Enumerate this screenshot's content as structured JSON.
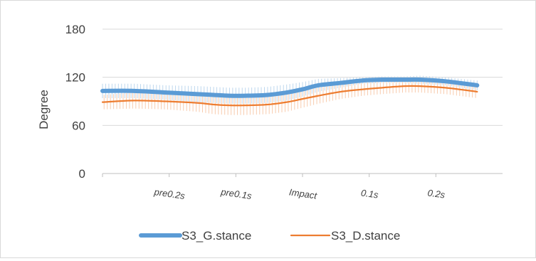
{
  "chart_data": {
    "type": "line",
    "title": "",
    "xlabel": "",
    "ylabel": "Degree",
    "ylim": [
      0,
      180
    ],
    "yticks": [
      0,
      60,
      120,
      180
    ],
    "x_tick_labels": [
      "pre0.2s",
      "pre0.1s",
      "Impact",
      "0.1s",
      "0.2s"
    ],
    "x_tick_positions": [
      21,
      42,
      63,
      84,
      105
    ],
    "x_range": [
      0,
      126
    ],
    "grid": true,
    "legend_position": "bottom",
    "series": [
      {
        "name": "S3_G.stance",
        "color": "#5b9bd5",
        "error_color": "#bdd7ee",
        "x": [
          0,
          10,
          20,
          30,
          35,
          40,
          45,
          52,
          58,
          63,
          68,
          75,
          82,
          88,
          95,
          100,
          108,
          118
        ],
        "values": [
          103,
          103,
          101,
          99,
          98,
          97,
          97,
          98,
          101,
          105,
          110,
          113,
          116,
          117,
          117,
          117,
          115,
          110
        ],
        "error": [
          9,
          9,
          9,
          10,
          10,
          10,
          10,
          10,
          10,
          9,
          8,
          6,
          4,
          4,
          4,
          5,
          5,
          6
        ]
      },
      {
        "name": "S3_D.stance",
        "color": "#ed7d31",
        "error_color": "#f8cbad",
        "x": [
          0,
          10,
          20,
          30,
          35,
          40,
          45,
          52,
          58,
          63,
          68,
          75,
          82,
          88,
          95,
          100,
          108,
          118
        ],
        "values": [
          89,
          91,
          90,
          88,
          86,
          85,
          85,
          86,
          89,
          93,
          97,
          102,
          105,
          107,
          109,
          109,
          107,
          102
        ],
        "error": [
          9,
          10,
          10,
          11,
          12,
          12,
          12,
          12,
          12,
          11,
          10,
          9,
          8,
          8,
          8,
          8,
          8,
          8
        ]
      }
    ]
  }
}
